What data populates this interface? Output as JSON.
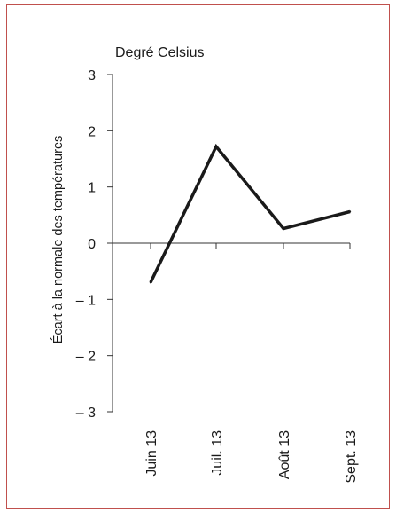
{
  "chart_data": {
    "type": "line",
    "unit_label": "Degré Celsius",
    "ylabel": "Écart à la normale des températures",
    "xlabel": "",
    "categories": [
      "Juin 13",
      "Juil. 13",
      "Août 13",
      "Sept. 13"
    ],
    "series": [
      {
        "values": [
          -0.7,
          1.72,
          0.26,
          0.56
        ]
      }
    ],
    "ylim": [
      -3,
      3
    ],
    "yticks": [
      3,
      2,
      1,
      0,
      -1,
      -2,
      -3
    ],
    "ytick_labels": [
      "3",
      "2",
      "1",
      "0",
      "– 1",
      "– 2",
      "– 3"
    ],
    "grid": false,
    "line_color": "#1a1a1a",
    "frame_color": "#c0504d"
  }
}
